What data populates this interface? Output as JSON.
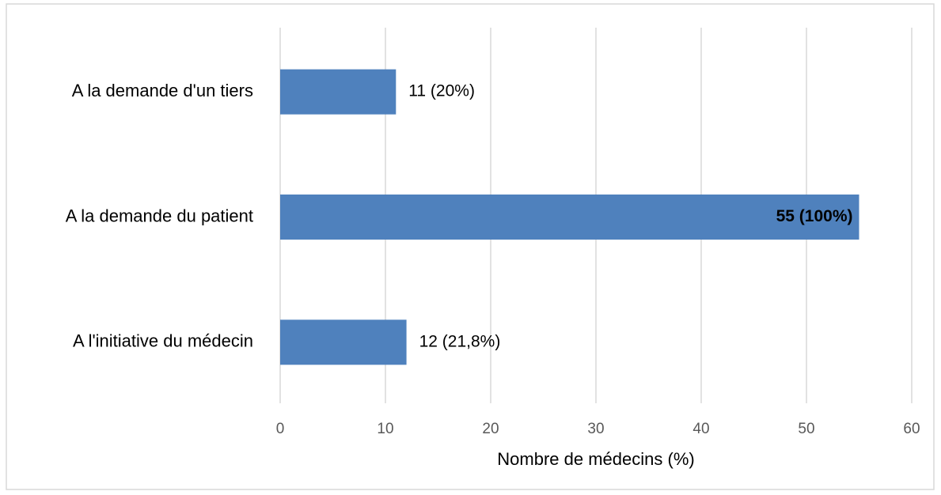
{
  "chart_data": {
    "type": "bar",
    "orientation": "horizontal",
    "categories": [
      "A la demande d'un tiers",
      "A la demande du patient",
      "A l'initiative du médecin"
    ],
    "values": [
      11,
      55,
      12
    ],
    "value_labels": [
      "11 (20%)",
      "55 (100%)",
      "12 (21,8%)"
    ],
    "color": "#4f81bd",
    "x_label": "Nombre de médecins (%)",
    "xlim": [
      0,
      60
    ],
    "xticks": [
      0,
      10,
      20,
      30,
      40,
      50,
      60
    ],
    "grid": true
  }
}
